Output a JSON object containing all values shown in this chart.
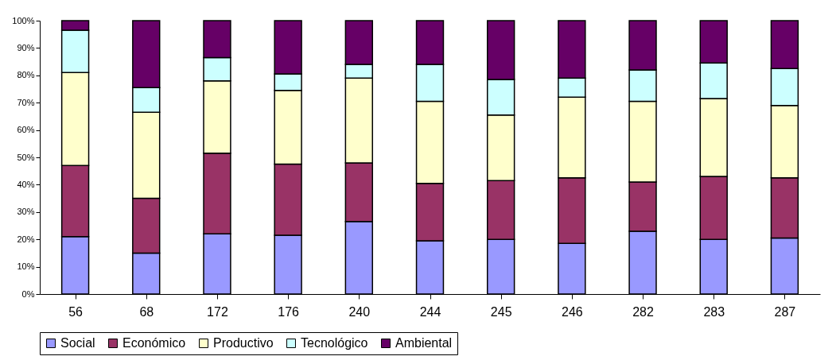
{
  "chart_data": {
    "type": "bar",
    "stacked": true,
    "categories": [
      "56",
      "68",
      "172",
      "176",
      "240",
      "244",
      "245",
      "246",
      "282",
      "283",
      "287"
    ],
    "series": [
      {
        "name": "Social",
        "color": "#9999ff",
        "values": [
          21,
          15,
          22,
          21.5,
          26.5,
          19.5,
          20,
          18.5,
          23,
          20,
          20.5
        ]
      },
      {
        "name": "Económico",
        "color": "#993366",
        "values": [
          26,
          20,
          29.5,
          26,
          21.5,
          21,
          21.5,
          24,
          18,
          23,
          22
        ]
      },
      {
        "name": "Productivo",
        "color": "#ffffcc",
        "values": [
          34,
          31.5,
          26.5,
          27,
          31,
          30,
          24,
          29.5,
          29.5,
          28.5,
          26.5
        ]
      },
      {
        "name": "Tecnológico",
        "color": "#ccffff",
        "values": [
          15.5,
          9,
          8.5,
          6,
          5,
          13.5,
          13,
          7,
          11.5,
          13,
          13.5
        ]
      },
      {
        "name": "Ambiental",
        "color": "#660066",
        "values": [
          3.5,
          24.5,
          13.5,
          19.5,
          16,
          16,
          21.5,
          21,
          18,
          15.5,
          17.5
        ]
      }
    ],
    "ylim": [
      0,
      100
    ],
    "yticks": [
      {
        "value": 0,
        "label": "0%"
      },
      {
        "value": 10,
        "label": "10%"
      },
      {
        "value": 20,
        "label": "20%"
      },
      {
        "value": 30,
        "label": "30%"
      },
      {
        "value": 40,
        "label": "40%"
      },
      {
        "value": 50,
        "label": "50%"
      },
      {
        "value": 60,
        "label": "60%"
      },
      {
        "value": 70,
        "label": "70%"
      },
      {
        "value": 80,
        "label": "80%"
      },
      {
        "value": 90,
        "label": "90%"
      },
      {
        "value": 100,
        "label": "100%"
      }
    ],
    "grid": false,
    "legend": "bottom"
  }
}
